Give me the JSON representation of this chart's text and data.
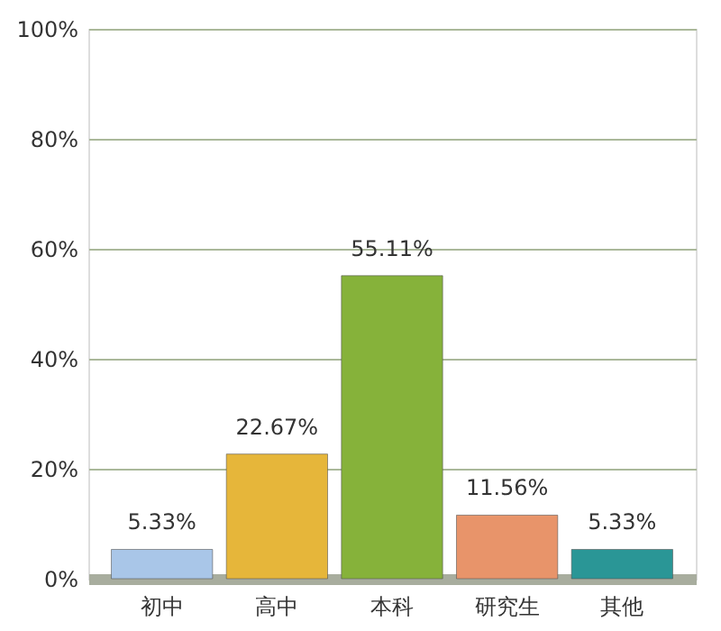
{
  "chart_data": {
    "type": "bar",
    "categories": [
      "初中",
      "高中",
      "本科",
      "研究生",
      "其他"
    ],
    "values": [
      5.33,
      22.67,
      55.11,
      11.56,
      5.33
    ],
    "value_labels": [
      "5.33%",
      "22.67%",
      "55.11%",
      "11.56%",
      "5.33%"
    ],
    "colors": [
      "#a9c6e8",
      "#e6b63a",
      "#86b23a",
      "#e8946a",
      "#2a9696"
    ],
    "ylim": [
      0,
      100
    ],
    "yticks": [
      {
        "value": 0,
        "label": "0%"
      },
      {
        "value": 20,
        "label": "20%"
      },
      {
        "value": 40,
        "label": "40%"
      },
      {
        "value": 60,
        "label": "60%"
      },
      {
        "value": 80,
        "label": "80%"
      },
      {
        "value": 100,
        "label": "100%"
      }
    ],
    "grid": "y"
  }
}
